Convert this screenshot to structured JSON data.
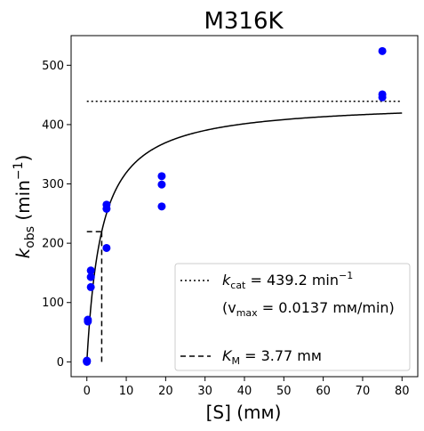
{
  "chart_data": {
    "type": "scatter",
    "title": "M316K",
    "xlabel": {
      "main": "[S] (mм)"
    },
    "ylabel": {
      "main": "k",
      "sub": "obs",
      "rest": " (min",
      "sup": "−1",
      "close": ")"
    },
    "xlim": [
      -4,
      84
    ],
    "ylim": [
      -25,
      550
    ],
    "xticks": [
      0,
      10,
      20,
      30,
      40,
      50,
      60,
      70,
      80
    ],
    "yticks": [
      0,
      100,
      200,
      300,
      400,
      500
    ],
    "grid": false,
    "point_color": "#0000ff",
    "curve_color": "#000000",
    "points": [
      {
        "x": 0,
        "y": 0
      },
      {
        "x": 0,
        "y": 1
      },
      {
        "x": 0,
        "y": 2
      },
      {
        "x": 0.25,
        "y": 68
      },
      {
        "x": 0.25,
        "y": 71
      },
      {
        "x": 1,
        "y": 126
      },
      {
        "x": 1,
        "y": 143
      },
      {
        "x": 1,
        "y": 154
      },
      {
        "x": 5,
        "y": 192
      },
      {
        "x": 5,
        "y": 258
      },
      {
        "x": 5,
        "y": 265
      },
      {
        "x": 19,
        "y": 262
      },
      {
        "x": 19,
        "y": 299
      },
      {
        "x": 19,
        "y": 313
      },
      {
        "x": 75,
        "y": 446
      },
      {
        "x": 75,
        "y": 451
      },
      {
        "x": 75,
        "y": 524
      }
    ],
    "fit": {
      "model": "Michaelis-Menten",
      "kcat": 439.2,
      "KM": 3.77,
      "x_range": [
        0,
        80
      ]
    },
    "kcat_line": {
      "x": [
        0,
        80
      ],
      "y": 439.2,
      "style": "dotted"
    },
    "km_line": {
      "style": "dashed",
      "vertical": {
        "x": 3.77,
        "y": [
          0,
          219.6
        ]
      },
      "horizontal": {
        "x": [
          0,
          3.77
        ],
        "y": 219.6
      }
    },
    "legend": {
      "position": "lower-right",
      "entries": [
        {
          "style": "dotted",
          "label": "k",
          "sub": "cat",
          "rest": " = 439.2 min",
          "sup": "−1"
        },
        {
          "style": "none",
          "label": "(v",
          "sub": "max",
          "rest": " = 0.0137 mм/min)"
        },
        {
          "style": "dashed",
          "label": "K",
          "sub": "M",
          "rest": " = 3.77 mм"
        }
      ]
    }
  }
}
